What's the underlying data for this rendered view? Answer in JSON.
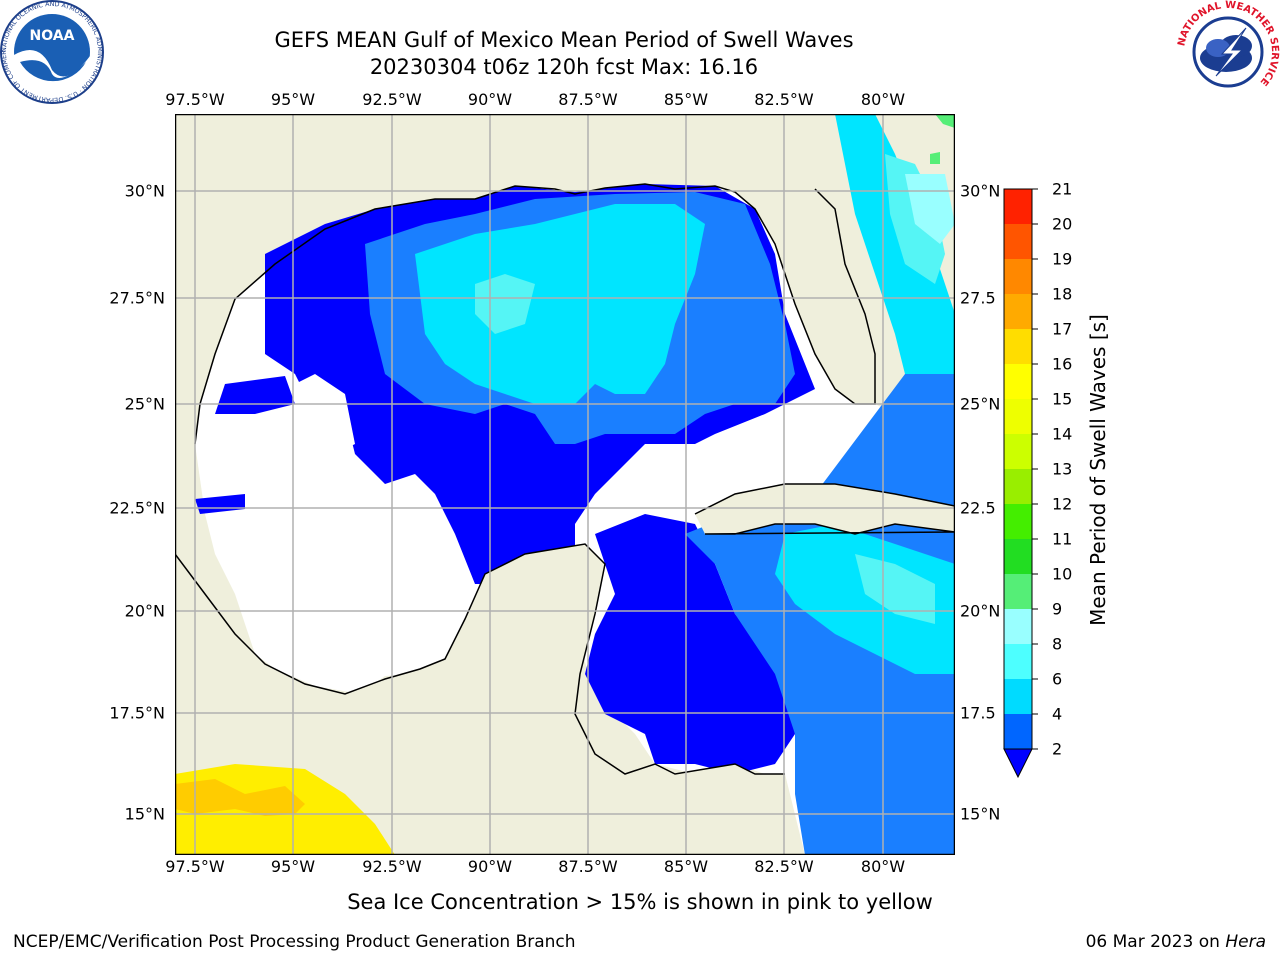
{
  "title": {
    "line1": "GEFS MEAN Gulf of Mexico Mean Period of Swell Waves",
    "line2": "20230304 t06z 120h fcst   Max: 16.16"
  },
  "axes": {
    "lon_labels": [
      "97.5°W",
      "95°W",
      "92.5°W",
      "90°W",
      "87.5°W",
      "85°W",
      "82.5°W",
      "80°W"
    ],
    "lat_labels_left": [
      "30°N",
      "27.5°N",
      "25°N",
      "22.5°N",
      "20°N",
      "17.5°N",
      "15°N"
    ],
    "lat_labels_right": [
      "30°N",
      "27.5",
      "25°N",
      "22.5",
      "20°N",
      "17.5",
      "15°N"
    ],
    "gridlines": true
  },
  "colorbar": {
    "label": "Mean Period of Swell Waves [s]",
    "ticks": [
      "2",
      "4",
      "6",
      "8",
      "9",
      "10",
      "11",
      "12",
      "13",
      "14",
      "15",
      "16",
      "17",
      "18",
      "19",
      "20",
      "21"
    ],
    "colors": [
      "#0066ff",
      "#00dbff",
      "#4dffff",
      "#99ffff",
      "#55ee77",
      "#22dd22",
      "#44ee00",
      "#99ee00",
      "#ccff00",
      "#eeff00",
      "#ffff00",
      "#ffdd00",
      "#ffaa00",
      "#ff8800",
      "#ff5500",
      "#ff2200"
    ],
    "under_color": "#0000ff"
  },
  "map_colors": {
    "land": "#efefdc",
    "sea_low": "#0000ff",
    "sea_2_4": "#1a7fff",
    "sea_4_6": "#00e5ff",
    "sea_6_8": "#55f5f5",
    "sea_8_9": "#99ffff",
    "ice": "#ffee00",
    "ice_edge": "#ffcc00"
  },
  "footer_note": "Sea Ice Concentration > 15% is shown in pink to yellow",
  "credit_left": "NCEP/EMC/Verification Post Processing Product Generation Branch",
  "credit_right_date": "06 Mar 2023 on ",
  "credit_right_host": "Hera",
  "logos": {
    "noaa_text": "NOAA",
    "noaa_ring": "NATIONAL OCEANIC AND ATMOSPHERIC ADMINISTRATION · U.S. DEPARTMENT OF COMMERCE ·",
    "nws_ring": "NATIONAL WEATHER SERVICE"
  }
}
